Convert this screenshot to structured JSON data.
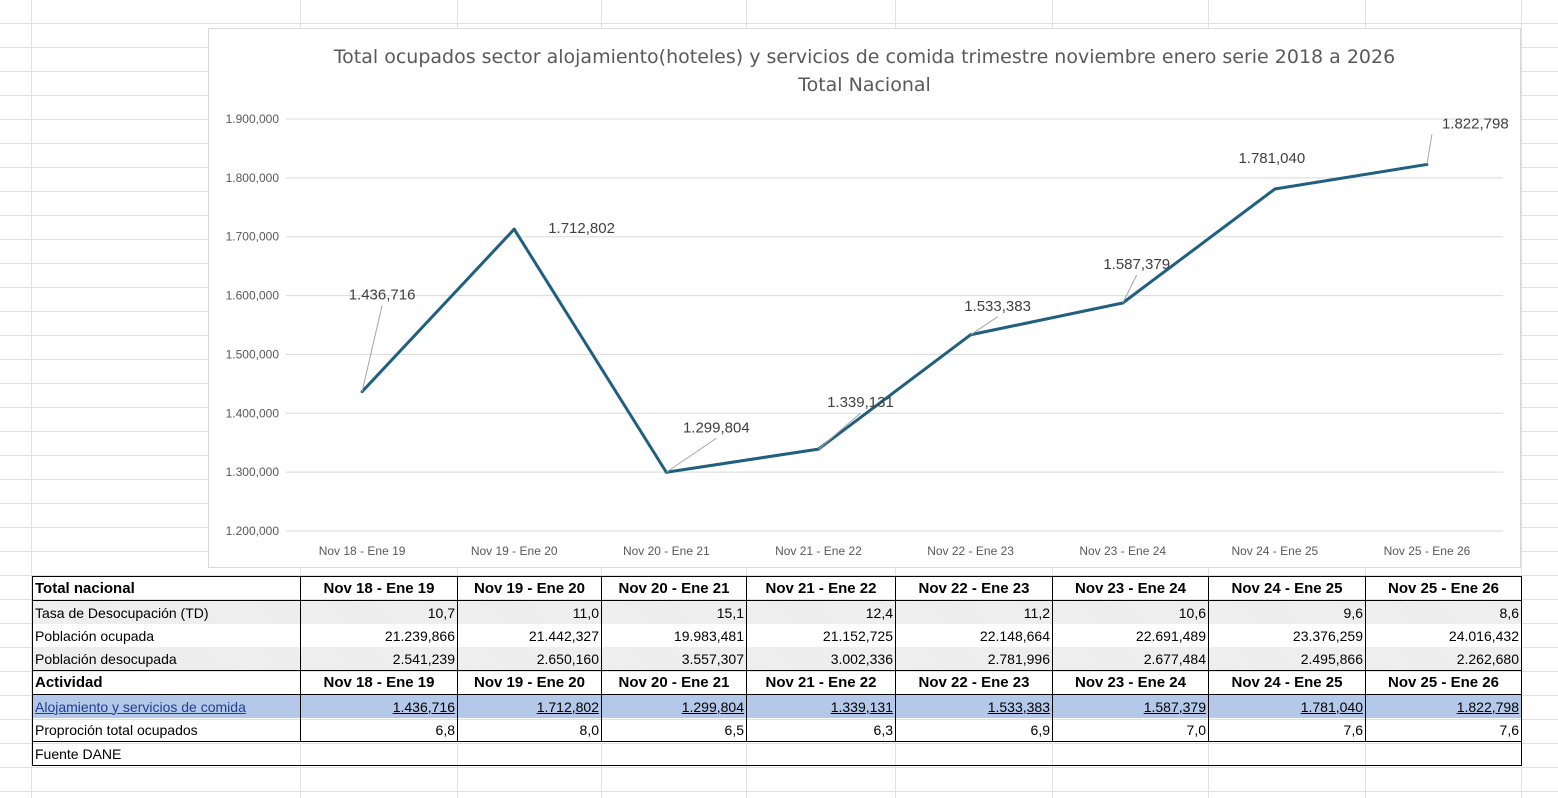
{
  "chart_data": {
    "type": "line",
    "title": "Total ocupados sector alojamiento(hoteles) y servicios de comida trimestre noviembre enero serie 2018 a 2026",
    "subtitle": "Total Nacional",
    "categories": [
      "Nov 18 - Ene 19",
      "Nov 19 - Ene 20",
      "Nov 20 - Ene 21",
      "Nov 21 - Ene 22",
      "Nov 22 - Ene 23",
      "Nov 23 - Ene 24",
      "Nov 24 - Ene 25",
      "Nov 25 - Ene 26"
    ],
    "values": [
      1436716,
      1712802,
      1299804,
      1339131,
      1533383,
      1587379,
      1781040,
      1822798
    ],
    "data_labels": [
      "1.436,716",
      "1.712,802",
      "1.299,804",
      "1.339,131",
      "1.533,383",
      "1.587,379",
      "1.781,040",
      "1.822,798"
    ],
    "y_ticks": [
      "1.200,000",
      "1.300,000",
      "1.400,000",
      "1.500,000",
      "1.600,000",
      "1.700,000",
      "1.800,000",
      "1.900,000"
    ],
    "y_tick_values": [
      1200000,
      1300000,
      1400000,
      1500000,
      1600000,
      1700000,
      1800000,
      1900000
    ],
    "ylim": [
      1200000,
      1900000
    ],
    "grid": true,
    "line_color": "#1f5f7f",
    "xlabel": "",
    "ylabel": ""
  },
  "table": {
    "header1": [
      "Total nacional",
      "Nov 18 - Ene 19",
      "Nov 19 - Ene 20",
      "Nov 20 - Ene 21",
      "Nov 21 - Ene 22",
      "Nov 22 - Ene 23",
      "Nov 23 - Ene 24",
      "Nov 24 - Ene 25",
      "Nov 25 - Ene 26"
    ],
    "rows1": [
      [
        "Tasa de Desocupación (TD)",
        "10,7",
        "11,0",
        "15,1",
        "12,4",
        "11,2",
        "10,6",
        "9,6",
        "8,6"
      ],
      [
        "Población ocupada",
        "21.239,866",
        "21.442,327",
        "19.983,481",
        "21.152,725",
        "22.148,664",
        "22.691,489",
        "23.376,259",
        "24.016,432"
      ],
      [
        "Población desocupada",
        "2.541,239",
        "2.650,160",
        "3.557,307",
        "3.002,336",
        "2.781,996",
        "2.677,484",
        "2.495,866",
        "2.262,680"
      ]
    ],
    "header2": [
      "Actividad",
      "Nov 18 - Ene 19",
      "Nov 19 - Ene 20",
      "Nov 20 - Ene 21",
      "Nov 21 - Ene 22",
      "Nov 22 - Ene 23",
      "Nov 23 - Ene 24",
      "Nov 24 - Ene 25",
      "Nov 25 - Ene 26"
    ],
    "rows2": [
      [
        "Alojamiento y servicios de comida",
        "1.436,716",
        "1.712,802",
        "1.299,804",
        "1.339,131",
        "1.533,383",
        "1.587,379",
        "1.781,040",
        "1.822,798"
      ],
      [
        "Proproción total ocupados",
        "6,8",
        "8,0",
        "6,5",
        "6,3",
        "6,9",
        "7,0",
        "7,6",
        "7,6"
      ]
    ],
    "source": "Fuente DANE"
  }
}
